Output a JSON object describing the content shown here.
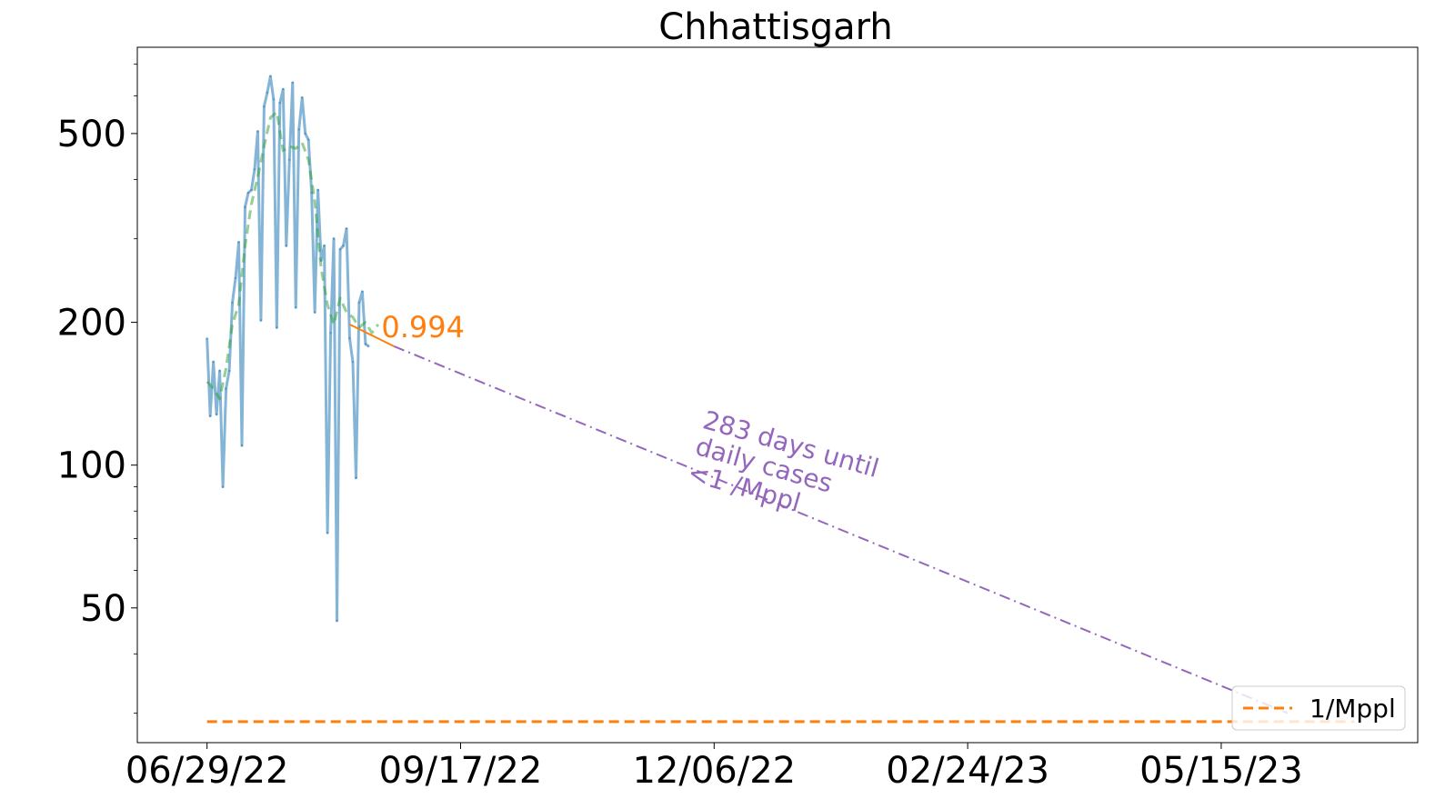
{
  "chart_data": {
    "type": "line",
    "title": "Chhattisgarh",
    "xlabel": "",
    "ylabel": "",
    "y_scale": "log",
    "ylim": [
      26,
      760
    ],
    "xlim": [
      "2022-06-07",
      "2023-07-16"
    ],
    "grid": false,
    "legend_placement": "bottom-right",
    "x_ticks": [
      {
        "date": "2022-06-29",
        "label": "06/29/22"
      },
      {
        "date": "2022-09-17",
        "label": "09/17/22"
      },
      {
        "date": "2022-12-06",
        "label": "12/06/22"
      },
      {
        "date": "2023-02-24",
        "label": "02/24/23"
      },
      {
        "date": "2023-05-15",
        "label": "05/15/23"
      }
    ],
    "y_ticks": [
      {
        "value": 50,
        "label": "50"
      },
      {
        "value": 100,
        "label": "100"
      },
      {
        "value": 200,
        "label": "200"
      },
      {
        "value": 500,
        "label": "500"
      }
    ],
    "series": [
      {
        "role": "daily",
        "color": "#1f77b4",
        "dash": "solid",
        "x": [
          "2022-06-29",
          "2022-06-30",
          "2022-07-01",
          "2022-07-02",
          "2022-07-03",
          "2022-07-04",
          "2022-07-05",
          "2022-07-06",
          "2022-07-07",
          "2022-07-08",
          "2022-07-09",
          "2022-07-10",
          "2022-07-11",
          "2022-07-12",
          "2022-07-13",
          "2022-07-14",
          "2022-07-15",
          "2022-07-16",
          "2022-07-17",
          "2022-07-18",
          "2022-07-19",
          "2022-07-20",
          "2022-07-21",
          "2022-07-22",
          "2022-07-23",
          "2022-07-24",
          "2022-07-25",
          "2022-07-26",
          "2022-07-27",
          "2022-07-28",
          "2022-07-29",
          "2022-07-30",
          "2022-07-31",
          "2022-08-01",
          "2022-08-02",
          "2022-08-03",
          "2022-08-04",
          "2022-08-05",
          "2022-08-06",
          "2022-08-07",
          "2022-08-08",
          "2022-08-09",
          "2022-08-10",
          "2022-08-11",
          "2022-08-12",
          "2022-08-13",
          "2022-08-14",
          "2022-08-15",
          "2022-08-16",
          "2022-08-17",
          "2022-08-18",
          "2022-08-19",
          "2022-08-20",
          "2022-08-21",
          "2022-08-22",
          "2022-08-23",
          "2022-08-24",
          "2022-08-25",
          "2022-08-26",
          "2022-08-27",
          "2022-08-28",
          "2022-08-29",
          "2022-08-30",
          "2022-08-31",
          "2022-09-01",
          "2022-09-02",
          "2022-09-03",
          "2022-09-04",
          "2022-09-05",
          "2022-09-06",
          "2022-09-07",
          "2022-09-08",
          "2022-09-09",
          "2022-09-10",
          "2022-09-11",
          "2022-09-12",
          "2022-09-13",
          "2022-09-14",
          "2022-09-15",
          "2022-09-16",
          "2022-09-17"
        ],
        "values": [
          185,
          127,
          165,
          128,
          158,
          90,
          145,
          158,
          220,
          248,
          295,
          110,
          350,
          375,
          380,
          420,
          505,
          202,
          570,
          610,
          660,
          590,
          195,
          580,
          620,
          290,
          440,
          640,
          215,
          510,
          595,
          500,
          485,
          375,
          210,
          380,
          270,
          290,
          72,
          190,
          300,
          47,
          285,
          290,
          315,
          185,
          165,
          94,
          220,
          232,
          180,
          178,
          null,
          null,
          null,
          null,
          null,
          null,
          null,
          null,
          null,
          null,
          null,
          null,
          null,
          null,
          null,
          null,
          null,
          null,
          null,
          null,
          null,
          null,
          null,
          null,
          null,
          null,
          null,
          null,
          null
        ]
      },
      {
        "role": "smoothed",
        "color": "#2ca02c",
        "dash": "dashed",
        "x": [
          "2022-06-29",
          "2022-07-01",
          "2022-07-03",
          "2022-07-05",
          "2022-07-07",
          "2022-07-09",
          "2022-07-11",
          "2022-07-13",
          "2022-07-15",
          "2022-07-17",
          "2022-07-19",
          "2022-07-21",
          "2022-07-23",
          "2022-07-25",
          "2022-07-27",
          "2022-07-29",
          "2022-07-31",
          "2022-08-02",
          "2022-08-04",
          "2022-08-06",
          "2022-08-08",
          "2022-08-10",
          "2022-08-12",
          "2022-08-14",
          "2022-08-16",
          "2022-08-18",
          "2022-08-20",
          "2022-08-22"
        ],
        "values": [
          150,
          145,
          138,
          160,
          198,
          218,
          290,
          355,
          405,
          470,
          540,
          555,
          460,
          470,
          465,
          478,
          440,
          360,
          260,
          218,
          198,
          225,
          210,
          205,
          195,
          200,
          190,
          198
        ]
      },
      {
        "role": "trend",
        "color": "#ff7f0e",
        "dash": "solid",
        "x": [
          "2022-08-13",
          "2022-08-27"
        ],
        "values": [
          198,
          178
        ]
      },
      {
        "role": "projection",
        "color": "#9467bd",
        "dash": "dashdot",
        "x": [
          "2022-08-27",
          "2023-06-05"
        ],
        "values": [
          178,
          30
        ]
      },
      {
        "name": "1/Mppl",
        "role": "threshold",
        "color": "#ff7f0e",
        "dash": "dashed",
        "x": [
          "2022-06-29",
          "2023-06-26"
        ],
        "values": [
          28.8,
          28.8
        ]
      }
    ],
    "annotations": [
      {
        "id": "slope",
        "text": "0.994",
        "color": "#ff7f0e",
        "x": "2022-08-23",
        "y": 186
      },
      {
        "id": "projection",
        "lines": [
          "283 days until",
          "daily cases",
          "<1 /Mppl"
        ],
        "color": "#9467bd",
        "x": "2022-12-02",
        "y": 120,
        "rotate": 16
      }
    ]
  }
}
